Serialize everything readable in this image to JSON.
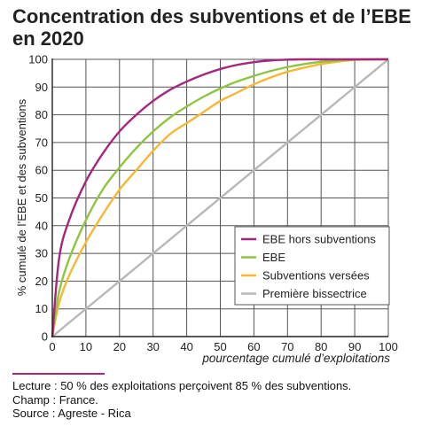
{
  "title": "Concentration des subventions et de l’EBE en 2020",
  "notes": {
    "lecture": "Lecture : 50 % des exploitations perçoivent 85 % des subventions.",
    "champ": "Champ : France.",
    "source": "Source : Agreste - Rica"
  },
  "chart_data": {
    "type": "line",
    "title": "Concentration des subventions et de l’EBE en 2020",
    "xlabel": "pourcentage cumulé d’exploitations",
    "ylabel": "% cumulé de l’EBE et des subventions",
    "xlim": [
      0,
      100
    ],
    "ylim": [
      0,
      100
    ],
    "xticks": [
      0,
      10,
      20,
      30,
      40,
      50,
      60,
      70,
      80,
      90,
      100
    ],
    "yticks": [
      0,
      10,
      20,
      30,
      40,
      50,
      60,
      70,
      80,
      90,
      100
    ],
    "grid": true,
    "legend_position": "bottom-right",
    "x": [
      0,
      2,
      5,
      10,
      15,
      20,
      25,
      30,
      35,
      40,
      45,
      50,
      55,
      60,
      65,
      70,
      75,
      80,
      85,
      90,
      95,
      100
    ],
    "series": [
      {
        "name": "EBE hors subventions",
        "color": "#a5267f",
        "values": [
          0,
          28,
          42,
          56,
          66,
          74,
          80,
          85,
          89,
          92,
          94.5,
          96.5,
          98,
          99,
          99.6,
          99.9,
          100,
          100,
          100,
          100,
          100,
          100
        ]
      },
      {
        "name": "EBE",
        "color": "#8cc63f",
        "values": [
          0,
          16,
          28,
          42,
          53,
          61,
          68,
          74,
          79,
          83,
          86.5,
          89.5,
          92,
          94,
          95.8,
          97.2,
          98.3,
          99.1,
          99.6,
          99.9,
          100,
          100
        ]
      },
      {
        "name": "Subventions versées",
        "color": "#f7b733",
        "values": [
          0,
          12,
          22,
          34,
          44,
          53,
          60,
          67,
          73,
          77,
          81,
          85,
          88,
          91,
          93.5,
          95.5,
          97,
          98.3,
          99.2,
          99.8,
          100,
          100
        ]
      },
      {
        "name": "Première bissectrice",
        "color": "#b8b8b8",
        "values": [
          0,
          2,
          5,
          10,
          15,
          20,
          25,
          30,
          35,
          40,
          45,
          50,
          55,
          60,
          65,
          70,
          75,
          80,
          85,
          90,
          95,
          100
        ]
      }
    ]
  }
}
